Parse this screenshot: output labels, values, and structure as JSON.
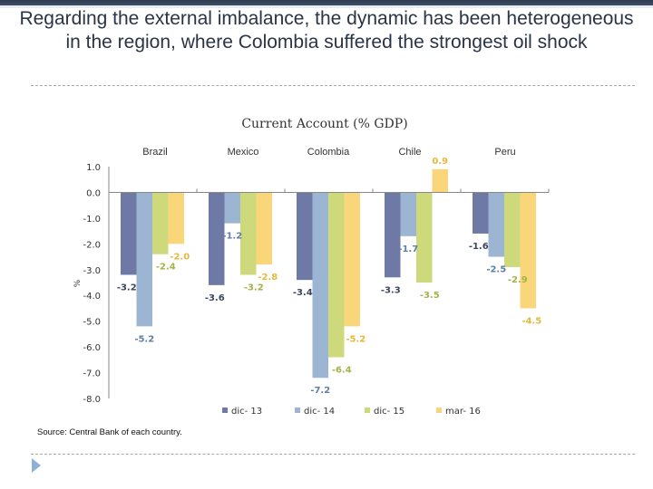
{
  "slide": {
    "title": "Regarding the external imbalance, the dynamic has been heterogeneous in the region, where Colombia suffered the strongest oil shock",
    "source": "Source: Central Bank of each country.",
    "bullet_icon": "triangle-bullet-icon"
  },
  "chart_data": {
    "type": "bar",
    "title": "Current Account (% GDP)",
    "xlabel": "",
    "ylabel": "%",
    "ylim": [
      -8.0,
      1.0
    ],
    "yticks": [
      "1.0",
      "0.0",
      "-1.0",
      "-2.0",
      "-3.0",
      "-4.0",
      "-5.0",
      "-6.0",
      "-7.0",
      "-8.0"
    ],
    "ytick_values": [
      1,
      0,
      -1,
      -2,
      -3,
      -4,
      -5,
      -6,
      -7,
      -8
    ],
    "grid": false,
    "legend_position": "bottom",
    "categories": [
      "Brazil",
      "Mexico",
      "Colombia",
      "Chile",
      "Peru"
    ],
    "series": [
      {
        "name": "dic- 13",
        "color": "#6E7AA5",
        "label_color": "#3b4660",
        "values": [
          -3.2,
          -3.6,
          -3.4,
          -3.3,
          -1.6
        ],
        "labels": [
          "-3.2",
          "-3.6",
          "-3.4",
          "-3.3",
          "-1.6"
        ]
      },
      {
        "name": "dic- 14",
        "color": "#9BB5D2",
        "label_color": "#5f7fa6",
        "values": [
          -5.2,
          -1.2,
          -7.2,
          -1.7,
          -2.5
        ],
        "labels": [
          "-5.2",
          "-1.2",
          "-7.2",
          "-1.7",
          "-2.5"
        ]
      },
      {
        "name": "dic- 15",
        "color": "#CDD97A",
        "label_color": "#a6b24a",
        "values": [
          -2.4,
          -3.2,
          -6.4,
          -3.5,
          -2.9
        ],
        "labels": [
          "-2.4",
          "-3.2",
          "-6.4",
          "-3.5",
          "-2.9"
        ]
      },
      {
        "name": "mar- 16",
        "color": "#FAD67A",
        "label_color": "#e6b93a",
        "values": [
          -2.0,
          -2.8,
          -5.2,
          0.9,
          -4.5
        ],
        "labels": [
          "-2.0",
          "-2.8",
          "-5.2",
          "0.9",
          "-4.5"
        ]
      }
    ]
  }
}
